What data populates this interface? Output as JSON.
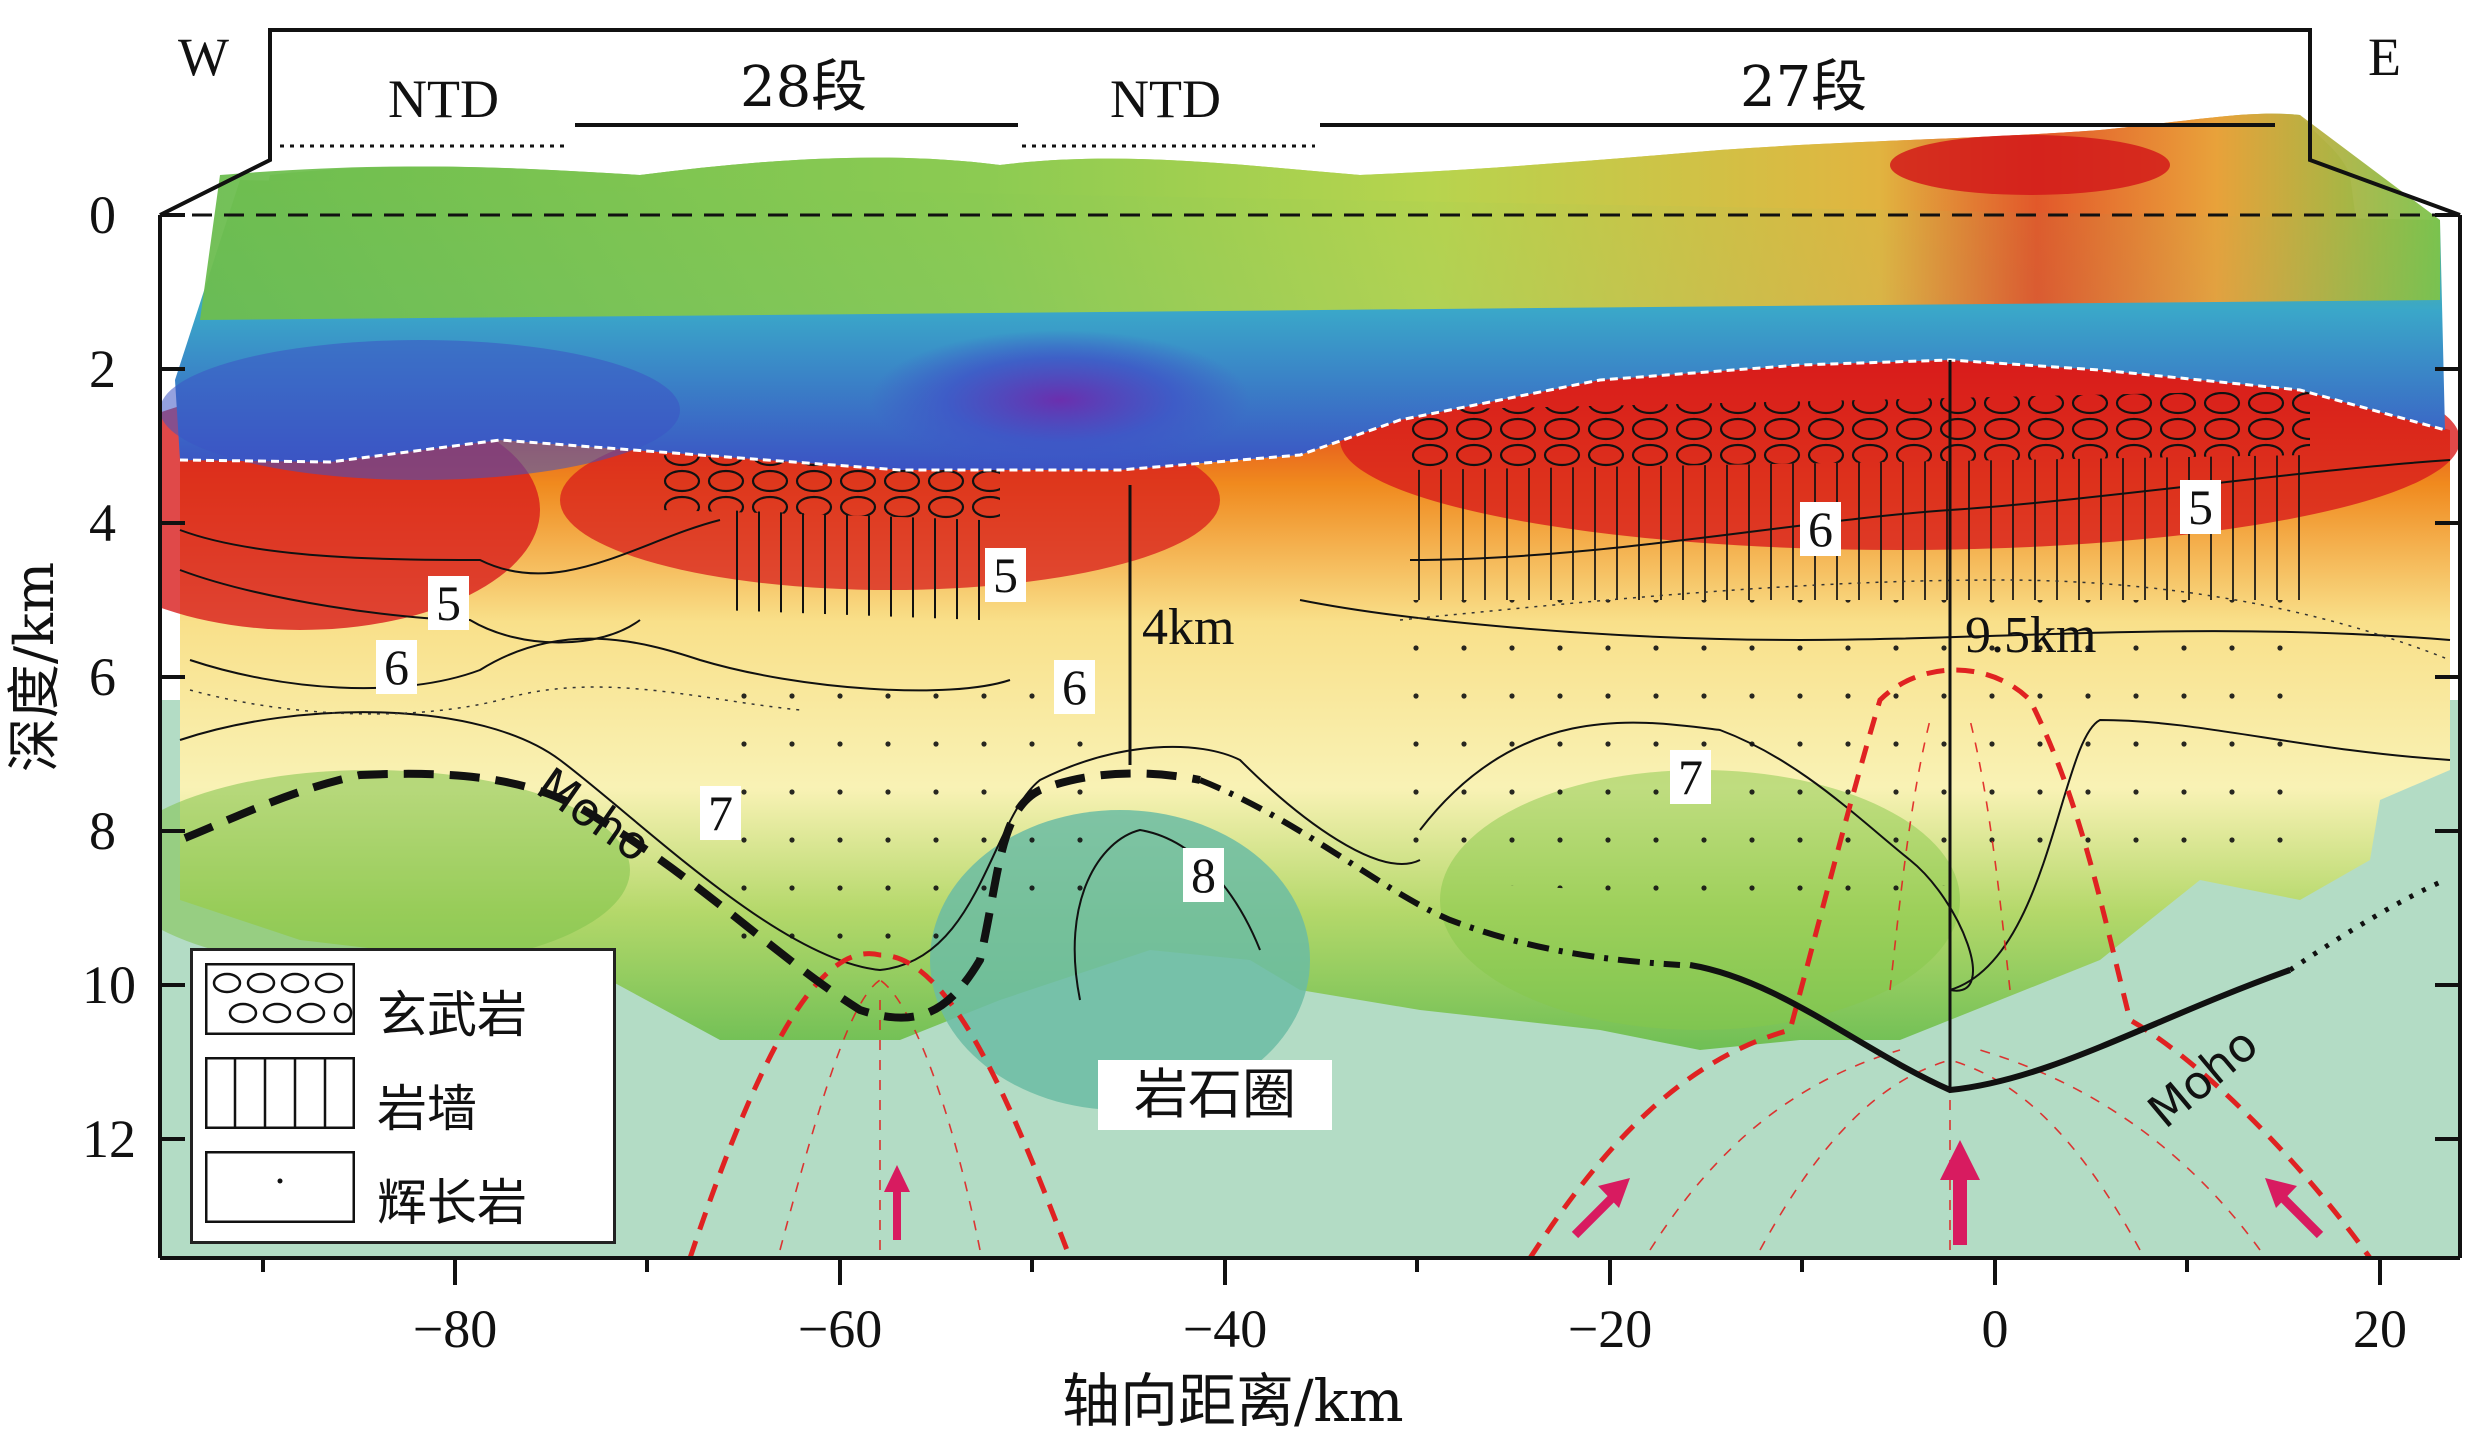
{
  "directions": {
    "west": "W",
    "east": "E"
  },
  "segments": {
    "ntd_left": "NTD",
    "seg28": "28段",
    "ntd_mid": "NTD",
    "seg27": "27段"
  },
  "axes": {
    "y_label": "深度/km",
    "x_label": "轴向距离/km",
    "y_ticks": [
      "0",
      "2",
      "4",
      "6",
      "8",
      "10",
      "12"
    ],
    "x_ticks": [
      "−80",
      "−60",
      "−40",
      "−20",
      "0",
      "20"
    ]
  },
  "contour_labels": {
    "a5": "5",
    "a6": "6",
    "a7": "7",
    "b5": "5",
    "b6": "6",
    "c8": "8",
    "d6": "6",
    "d7": "7",
    "e5": "5"
  },
  "annotations": {
    "thickness_left": "4km",
    "thickness_right": "9.5km",
    "moho_left": "Moho",
    "moho_right": "Moho",
    "lithosphere": "岩石圈"
  },
  "legend": {
    "basalt": "玄武岩",
    "dike": "岩墙",
    "gabbro": "辉长岩"
  },
  "colors": {
    "hot": "#d81c1c",
    "orange": "#f08a1e",
    "yellow": "#f9f0a0",
    "green": "#7fc24a",
    "lithosphere": "#b0dcc4",
    "blue": "#3d6fcf",
    "purple": "#6a3fb0",
    "upwelling_dash": "#e02222",
    "arrow": "#d81b60"
  }
}
